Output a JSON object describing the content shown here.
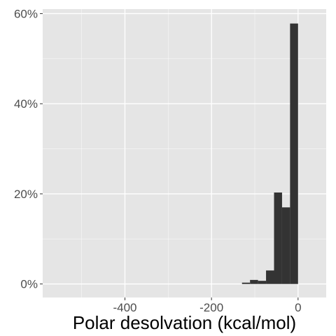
{
  "chart_data": {
    "type": "bar",
    "title": "",
    "xlabel": "Polar desolvation (kcal/mol)",
    "ylabel": "",
    "xlim": [
      -590,
      65
    ],
    "ylim": [
      -3,
      61
    ],
    "x_ticks": [
      -400,
      -200,
      0
    ],
    "x_tick_labels": [
      "-400",
      "-200",
      "0"
    ],
    "y_ticks": [
      0,
      20,
      40,
      60
    ],
    "y_tick_labels": [
      "0%",
      "20%",
      "40%",
      "60%"
    ],
    "bin_width": 18.5,
    "bin_left_edges": [
      -129.5,
      -111,
      -92.5,
      -74,
      -55.5,
      -37,
      -18.5
    ],
    "values": [
      0.3,
      0.9,
      0.7,
      3.0,
      20.3,
      17.0,
      57.8
    ],
    "grid": true,
    "legend": "none",
    "colors": {
      "panel_background": "#e5e5e5",
      "grid_major": "#ffffff",
      "bar_fill": "#333333"
    }
  }
}
